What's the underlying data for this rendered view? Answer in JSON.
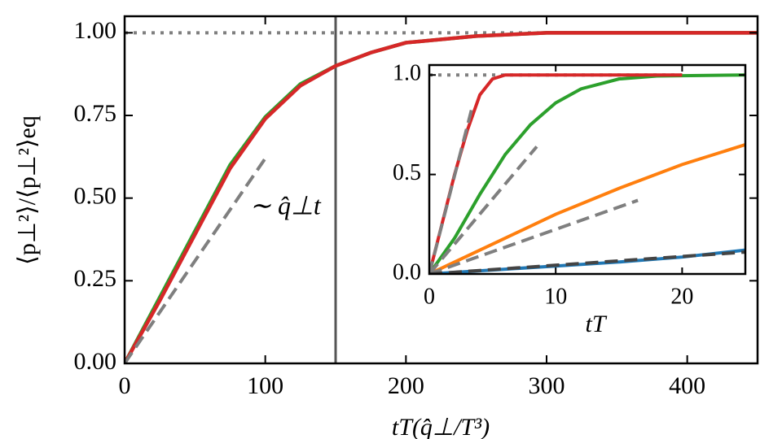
{
  "chart_data": [
    {
      "type": "line",
      "xlabel": "tT(q̂⊥/T³)",
      "ylabel": "⟨p⊥²⟩/⟨p⊥²⟩eq",
      "annotation": "∼ q̂⊥t",
      "xlim": [
        0,
        450
      ],
      "ylim": [
        0,
        1.05
      ],
      "xticks": [
        0,
        100,
        200,
        300,
        400
      ],
      "yticks": [
        {
          "value": 0,
          "label": "0.00"
        },
        {
          "value": 0.25,
          "label": "0.25"
        },
        {
          "value": 0.5,
          "label": "0.50"
        },
        {
          "value": 0.75,
          "label": "0.75"
        },
        {
          "value": 1,
          "label": "1.00"
        }
      ],
      "vline": 150,
      "series": [
        {
          "color": "#7f7f7f",
          "style": "dotted",
          "x": [
            0,
            450
          ],
          "values": [
            1,
            1
          ]
        },
        {
          "color": "#2ca02c",
          "style": "solid",
          "x": [
            0,
            25,
            50,
            75,
            100,
            125,
            150,
            175,
            200,
            250,
            300,
            350,
            400,
            450
          ],
          "values": [
            0,
            0.2,
            0.4,
            0.6,
            0.745,
            0.845,
            0.9,
            0.94,
            0.97,
            0.99,
            1,
            1,
            1,
            1
          ]
        },
        {
          "color": "#d62728",
          "style": "solid",
          "x": [
            0,
            25,
            50,
            75,
            100,
            125,
            150,
            175,
            200,
            250,
            300,
            350,
            400,
            450
          ],
          "values": [
            0,
            0.19,
            0.39,
            0.59,
            0.74,
            0.84,
            0.9,
            0.94,
            0.97,
            0.99,
            1,
            1,
            1,
            1
          ]
        },
        {
          "color": "#7f7f7f",
          "style": "dashed",
          "x": [
            0,
            100
          ],
          "values": [
            0,
            0.62
          ]
        }
      ]
    },
    {
      "type": "line",
      "xlabel": "tT",
      "xlim": [
        0,
        25
      ],
      "ylim": [
        0,
        1.05
      ],
      "xticks": [
        0,
        10,
        20
      ],
      "yticks": [
        {
          "value": 0,
          "label": "0.0"
        },
        {
          "value": 0.5,
          "label": "0.5"
        },
        {
          "value": 1,
          "label": "1.0"
        }
      ],
      "series": [
        {
          "color": "#7f7f7f",
          "style": "dotted",
          "x": [
            0,
            20
          ],
          "values": [
            1,
            1
          ]
        },
        {
          "color": "#1f77b4",
          "style": "solid",
          "x": [
            0,
            5,
            10,
            15,
            20,
            25
          ],
          "values": [
            0,
            0.02,
            0.04,
            0.06,
            0.085,
            0.12
          ]
        },
        {
          "color": "#ff7f0e",
          "style": "solid",
          "x": [
            0,
            5,
            10,
            15,
            20,
            25
          ],
          "values": [
            0,
            0.15,
            0.3,
            0.43,
            0.55,
            0.65
          ]
        },
        {
          "color": "#2ca02c",
          "style": "solid",
          "x": [
            0,
            2,
            4,
            6,
            8,
            10,
            12,
            15,
            18,
            25
          ],
          "values": [
            0,
            0.18,
            0.4,
            0.6,
            0.75,
            0.86,
            0.93,
            0.98,
            0.995,
            1
          ]
        },
        {
          "color": "#d62728",
          "style": "solid",
          "x": [
            0,
            1,
            2,
            3,
            4,
            5,
            6,
            20
          ],
          "values": [
            0,
            0.25,
            0.5,
            0.72,
            0.9,
            0.98,
            1,
            1
          ]
        },
        {
          "color": "#7f7f7f",
          "style": "dashed",
          "x": [
            0,
            3.4
          ],
          "values": [
            0,
            0.84
          ]
        },
        {
          "color": "#7f7f7f",
          "style": "dashed",
          "x": [
            0,
            8.5
          ],
          "values": [
            0,
            0.64
          ]
        },
        {
          "color": "#7f7f7f",
          "style": "dashed",
          "x": [
            0,
            16.5
          ],
          "values": [
            0,
            0.37
          ]
        },
        {
          "color": "#444444",
          "style": "dashed",
          "x": [
            0,
            25
          ],
          "values": [
            0,
            0.11
          ]
        }
      ]
    }
  ]
}
